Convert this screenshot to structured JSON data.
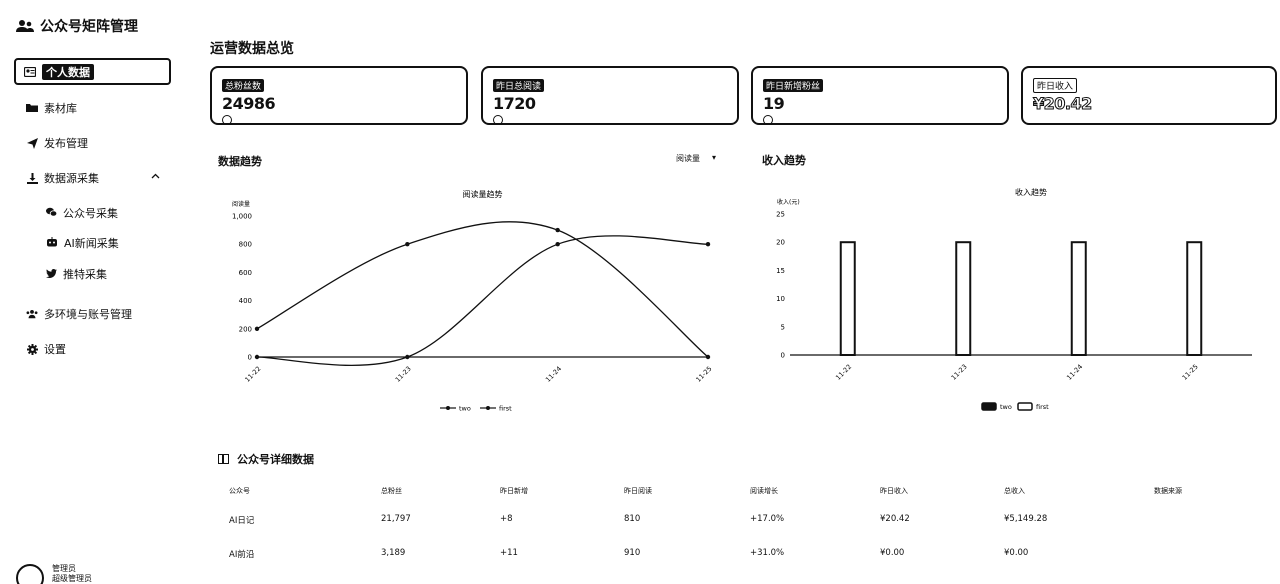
{
  "app": {
    "title": "公众号矩阵管理"
  },
  "sidebar": {
    "items": [
      {
        "label": "个人数据",
        "icon": "user-card-icon",
        "active": true
      },
      {
        "label": "素材库",
        "icon": "folder-icon"
      },
      {
        "label": "发布管理",
        "icon": "send-icon"
      },
      {
        "label": "数据源采集",
        "icon": "download-icon",
        "expanded": true
      }
    ],
    "subitems": [
      {
        "label": "公众号采集",
        "icon": "wechat-icon"
      },
      {
        "label": "AI新闻采集",
        "icon": "robot-icon"
      },
      {
        "label": "推特采集",
        "icon": "twitter-icon"
      }
    ],
    "items2": [
      {
        "label": "多环境与账号管理",
        "icon": "users-icon"
      },
      {
        "label": "设置",
        "icon": "gear-icon"
      }
    ],
    "user": {
      "name": "管理员",
      "role": "超级管理员"
    }
  },
  "main": {
    "title": "运营数据总览",
    "cards": [
      {
        "label": "总粉丝数",
        "value": "24986"
      },
      {
        "label": "昨日总阅读",
        "value": "1720"
      },
      {
        "label": "昨日新增粉丝",
        "value": "19"
      },
      {
        "label": "昨日收入",
        "value": "¥20.42"
      }
    ],
    "trend_title": "数据趋势",
    "trend_select": "阅读量",
    "income_title": "收入趋势"
  },
  "chart_data": [
    {
      "type": "line",
      "title": "阅读量趋势",
      "ylabel": "阅读量",
      "x": [
        "11-22",
        "11-23",
        "11-24",
        "11-25"
      ],
      "ylim": [
        0,
        1000
      ],
      "yticks": [
        "0",
        "200",
        "400",
        "600",
        "800",
        "1,000"
      ],
      "series": [
        {
          "name": "two",
          "values": [
            200,
            800,
            900,
            0
          ]
        },
        {
          "name": "first",
          "values": [
            0,
            0,
            800,
            800
          ]
        }
      ],
      "legend": "bottom"
    },
    {
      "type": "bar",
      "title": "收入趋势",
      "ylabel": "收入(元)",
      "categories": [
        "11-22",
        "11-23",
        "11-24",
        "11-25"
      ],
      "ylim": [
        0,
        25
      ],
      "yticks": [
        "0",
        "5",
        "10",
        "15",
        "20",
        "25"
      ],
      "series": [
        {
          "name": "two",
          "values": [
            20,
            20,
            20,
            20
          ]
        },
        {
          "name": "first",
          "values": [
            0,
            0,
            0,
            0
          ]
        }
      ],
      "legend": "bottom"
    }
  ],
  "table": {
    "title": "公众号详细数据",
    "headers": [
      "公众号",
      "总粉丝",
      "昨日新增",
      "昨日阅读",
      "阅读增长",
      "昨日收入",
      "总收入",
      "数据来源"
    ],
    "rows": [
      [
        "AI日记",
        "21,797",
        "+8",
        "810",
        "+17.0%",
        "¥20.42",
        "¥5,149.28",
        ""
      ],
      [
        "AI前沿",
        "3,189",
        "+11",
        "910",
        "+31.0%",
        "¥0.00",
        "¥0.00",
        ""
      ]
    ]
  }
}
